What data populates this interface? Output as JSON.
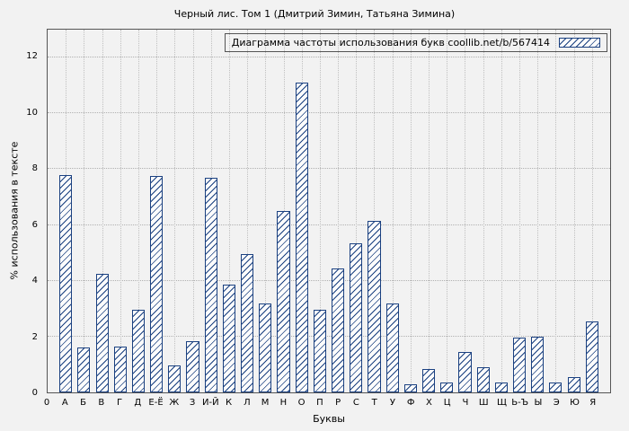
{
  "chart_data": {
    "type": "bar",
    "title": "Черный лис. Том 1 (Дмитрий Зимин, Татьяна Зимина)",
    "legend_label": "Диаграмма частоты использования букв coollib.net/b/567414",
    "xlabel": "Буквы",
    "ylabel": "% использования в тексте",
    "origin_label": "0",
    "categories": [
      "А",
      "Б",
      "В",
      "Г",
      "Д",
      "Е-Ё",
      "Ж",
      "З",
      "И-Й",
      "К",
      "Л",
      "М",
      "Н",
      "О",
      "П",
      "Р",
      "С",
      "Т",
      "У",
      "Ф",
      "Х",
      "Ц",
      "Ч",
      "Ш",
      "Щ",
      "Ь-Ъ",
      "Ы",
      "Э",
      "Ю",
      "Я"
    ],
    "values": [
      7.8,
      1.6,
      4.25,
      1.65,
      2.95,
      7.75,
      0.95,
      1.85,
      7.7,
      3.85,
      4.95,
      3.2,
      6.5,
      11.1,
      2.95,
      4.45,
      5.35,
      6.15,
      3.2,
      0.3,
      0.85,
      0.35,
      1.45,
      0.9,
      0.35,
      1.95,
      2.0,
      0.35,
      0.55,
      2.55
    ],
    "ylim": [
      0,
      13
    ],
    "yticks": [
      0,
      2,
      4,
      6,
      8,
      10,
      12
    ],
    "grid": true,
    "legend_position": "top-right",
    "bar_color": "#1a4080",
    "background_color": "#f2f2f2"
  }
}
